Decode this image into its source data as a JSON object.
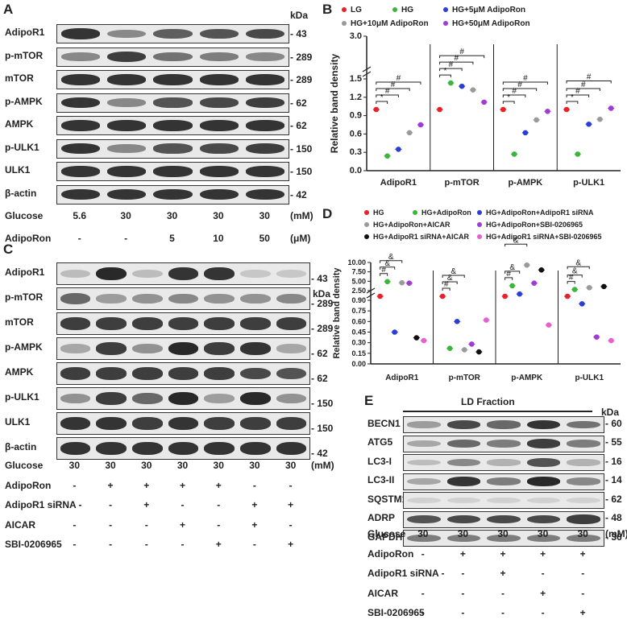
{
  "panels": {
    "A": {
      "letter": "A",
      "kda_header": "kDa",
      "blots": [
        {
          "label": "AdipoR1",
          "kda": "43",
          "intensity": [
            0.85,
            0.45,
            0.65,
            0.7,
            0.75
          ]
        },
        {
          "label": "p-mTOR",
          "kda": "289",
          "intensity": [
            0.45,
            0.8,
            0.55,
            0.5,
            0.45
          ]
        },
        {
          "label": "mTOR",
          "kda": "289",
          "intensity": [
            0.85,
            0.85,
            0.85,
            0.85,
            0.85
          ]
        },
        {
          "label": "p-AMPK",
          "kda": "62",
          "intensity": [
            0.85,
            0.45,
            0.7,
            0.75,
            0.8
          ]
        },
        {
          "label": "AMPK",
          "kda": "62",
          "intensity": [
            0.85,
            0.85,
            0.85,
            0.85,
            0.85
          ]
        },
        {
          "label": "p-ULK1",
          "kda": "150",
          "intensity": [
            0.85,
            0.45,
            0.7,
            0.75,
            0.8
          ]
        },
        {
          "label": "ULK1",
          "kda": "150",
          "intensity": [
            0.85,
            0.85,
            0.85,
            0.85,
            0.85
          ]
        },
        {
          "label": "β-actin",
          "kda": "42",
          "intensity": [
            0.85,
            0.85,
            0.85,
            0.85,
            0.85
          ]
        }
      ],
      "conditions": [
        {
          "label": "Glucose",
          "values": [
            "5.6",
            "30",
            "30",
            "30",
            "30"
          ],
          "unit": "(mM)"
        },
        {
          "label": "AdipoRon",
          "values": [
            "-",
            "-",
            "5",
            "10",
            "50"
          ],
          "unit": "(μM)"
        }
      ]
    },
    "C": {
      "letter": "C",
      "kda_header": "kDa",
      "blots": [
        {
          "label": "AdipoR1",
          "kda": "43",
          "intensity": [
            0.2,
            0.9,
            0.2,
            0.85,
            0.85,
            0.15,
            0.15
          ]
        },
        {
          "label": "p-mTOR",
          "kda": "289",
          "intensity": [
            0.6,
            0.35,
            0.4,
            0.45,
            0.4,
            0.4,
            0.45
          ]
        },
        {
          "label": "mTOR",
          "kda": "289",
          "intensity": [
            0.8,
            0.8,
            0.8,
            0.8,
            0.8,
            0.8,
            0.8
          ]
        },
        {
          "label": "p-AMPK",
          "kda": "62",
          "intensity": [
            0.3,
            0.8,
            0.4,
            0.9,
            0.8,
            0.85,
            0.3
          ]
        },
        {
          "label": "AMPK",
          "kda": "62",
          "intensity": [
            0.8,
            0.8,
            0.8,
            0.8,
            0.8,
            0.75,
            0.7
          ]
        },
        {
          "label": "p-ULK1",
          "kda": "150",
          "intensity": [
            0.4,
            0.8,
            0.6,
            0.9,
            0.35,
            0.9,
            0.4
          ]
        },
        {
          "label": "ULK1",
          "kda": "150",
          "intensity": [
            0.85,
            0.85,
            0.8,
            0.85,
            0.8,
            0.8,
            0.8
          ]
        },
        {
          "label": "β-actin",
          "kda": "42",
          "intensity": [
            0.85,
            0.85,
            0.85,
            0.85,
            0.85,
            0.85,
            0.85
          ]
        }
      ],
      "conditions": [
        {
          "label": "Glucose",
          "values": [
            "30",
            "30",
            "30",
            "30",
            "30",
            "30",
            "30"
          ],
          "unit": "(mM)"
        },
        {
          "label": "AdipoRon",
          "values": [
            "-",
            "+",
            "+",
            "+",
            "+",
            "-",
            "-"
          ],
          "unit": ""
        },
        {
          "label": "AdipoR1 siRNA -",
          "values": [
            "",
            "-",
            "+",
            "-",
            "-",
            "+",
            "+"
          ],
          "unit": ""
        },
        {
          "label": "AICAR",
          "values": [
            "-",
            "-",
            "-",
            "+",
            "-",
            "+",
            "-"
          ],
          "unit": ""
        },
        {
          "label": "SBI-0206965",
          "values": [
            "-",
            "-",
            "-",
            "-",
            "+",
            "-",
            "+"
          ],
          "unit": ""
        }
      ]
    },
    "E": {
      "letter": "E",
      "header": "LD Fraction",
      "kda_header": "kDa",
      "blots": [
        {
          "label": "BECN1",
          "kda": "60",
          "intensity": [
            0.35,
            0.75,
            0.6,
            0.85,
            0.55
          ]
        },
        {
          "label": "ATG5",
          "kda": "55",
          "intensity": [
            0.3,
            0.6,
            0.5,
            0.8,
            0.5
          ]
        },
        {
          "label": "LC3-I",
          "kda": "16",
          "intensity": [
            0.2,
            0.45,
            0.25,
            0.7,
            0.25
          ]
        },
        {
          "label": "LC3-II",
          "kda": "14",
          "intensity": [
            0.3,
            0.85,
            0.5,
            0.9,
            0.45
          ]
        },
        {
          "label": "SQSTM1",
          "kda": "62",
          "intensity": [
            0.1,
            0.1,
            0.1,
            0.1,
            0.1
          ]
        },
        {
          "label": "ADRP",
          "kda": "48",
          "intensity": [
            0.7,
            0.75,
            0.75,
            0.75,
            0.8
          ]
        },
        {
          "label": "GAPDH",
          "kda": "36",
          "intensity": [
            0.5,
            0.5,
            0.5,
            0.5,
            0.5
          ]
        }
      ],
      "conditions": [
        {
          "label": "Glucose",
          "values": [
            "30",
            "30",
            "30",
            "30",
            "30"
          ],
          "unit": "(mM)"
        },
        {
          "label": "AdipoRon",
          "values": [
            "-",
            "+",
            "+",
            "+",
            "+"
          ],
          "unit": ""
        },
        {
          "label": "AdipoR1 siRNA -",
          "values": [
            "",
            "-",
            "+",
            "-",
            "-"
          ],
          "unit": ""
        },
        {
          "label": "AICAR",
          "values": [
            "-",
            "-",
            "-",
            "+",
            "-"
          ],
          "unit": ""
        },
        {
          "label": "SBI-0206965",
          "values": [
            "-",
            "-",
            "-",
            "-",
            "+"
          ],
          "unit": ""
        }
      ]
    }
  },
  "chart_data": [
    {
      "panel": "B",
      "type": "scatter",
      "ylabel": "Relative band density",
      "categories": [
        "AdipoR1",
        "p-mTOR",
        "p-AMPK",
        "p-ULK1"
      ],
      "yticks": [
        "0.0",
        "0.3",
        "0.6",
        "0.9",
        "1.2",
        "1.5",
        "3.0"
      ],
      "ylim": [
        0,
        3.0
      ],
      "y_break": [
        1.5,
        2.4
      ],
      "legend_position": "top",
      "series": [
        {
          "name": "LG",
          "color": "#e8212a",
          "values": [
            1.0,
            1.0,
            1.0,
            1.0
          ]
        },
        {
          "name": "HG",
          "color": "#3cb53c",
          "values": [
            0.24,
            2.15,
            0.27,
            0.27
          ]
        },
        {
          "name": "HG+5μM AdipoRon",
          "color": "#2b3fd6",
          "values": [
            0.35,
            1.38,
            0.62,
            0.76
          ]
        },
        {
          "name": "HG+10μM AdipoRon",
          "color": "#9a9a9a",
          "values": [
            0.62,
            1.32,
            0.83,
            0.84
          ]
        },
        {
          "name": "HG+50μM AdipoRon",
          "color": "#a03bd6",
          "values": [
            0.75,
            1.12,
            0.97,
            1.02
          ]
        }
      ],
      "annotations": [
        "*",
        "#",
        "#",
        "#"
      ]
    },
    {
      "panel": "D",
      "type": "scatter",
      "ylabel": "Relative band density",
      "categories": [
        "AdipoR1",
        "p-mTOR",
        "p-AMPK",
        "p-ULK1"
      ],
      "yticks": [
        "0.00",
        "0.15",
        "0.30",
        "0.45",
        "0.60",
        "0.75",
        "0.90",
        "2.50",
        "5.00",
        "7.50",
        "10.00"
      ],
      "ylim": [
        0,
        10
      ],
      "y_break": [
        0.9,
        2.5
      ],
      "legend_position": "top",
      "series": [
        {
          "name": "HG",
          "color": "#e8212a",
          "values": [
            1.0,
            1.0,
            1.0,
            1.0
          ]
        },
        {
          "name": "HG+AdipoRon",
          "color": "#3cb53c",
          "values": [
            4.9,
            0.22,
            3.8,
            2.8
          ]
        },
        {
          "name": "HG+AdipoRon+AdipoR1 siRNA",
          "color": "#2b3fd6",
          "values": [
            0.45,
            0.6,
            1.6,
            0.85
          ]
        },
        {
          "name": "HG+AdipoRon+AICAR",
          "color": "#9a9a9a",
          "values": [
            4.6,
            0.2,
            9.3,
            3.3
          ]
        },
        {
          "name": "HG+AdipoRon+SBI-0206965",
          "color": "#a03bd6",
          "values": [
            4.5,
            0.28,
            4.5,
            0.38
          ]
        },
        {
          "name": "HG+AdipoR1 siRNA+AICAR",
          "color": "#111111",
          "values": [
            0.37,
            0.17,
            8.0,
            3.6
          ]
        },
        {
          "name": "HG+AdipoR1 siRNA+SBI-0206965",
          "color": "#e85fd0",
          "values": [
            0.33,
            0.62,
            0.55,
            0.33
          ]
        }
      ],
      "annotations": [
        "#",
        "&",
        "&"
      ]
    }
  ],
  "panel_letters": {
    "B": "B",
    "D": "D"
  }
}
